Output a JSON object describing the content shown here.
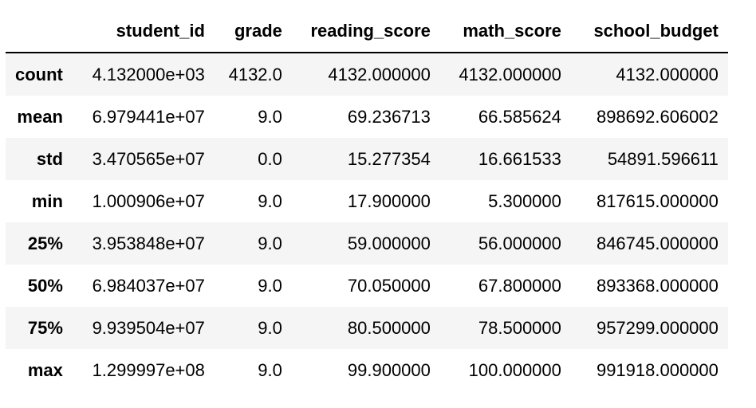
{
  "table": {
    "columns": [
      "",
      "student_id",
      "grade",
      "reading_score",
      "math_score",
      "school_budget"
    ],
    "rows": [
      {
        "label": "count",
        "cells": [
          "4.132000e+03",
          "4132.0",
          "4132.000000",
          "4132.000000",
          "4132.000000"
        ]
      },
      {
        "label": "mean",
        "cells": [
          "6.979441e+07",
          "9.0",
          "69.236713",
          "66.585624",
          "898692.606002"
        ]
      },
      {
        "label": "std",
        "cells": [
          "3.470565e+07",
          "0.0",
          "15.277354",
          "16.661533",
          "54891.596611"
        ]
      },
      {
        "label": "min",
        "cells": [
          "1.000906e+07",
          "9.0",
          "17.900000",
          "5.300000",
          "817615.000000"
        ]
      },
      {
        "label": "25%",
        "cells": [
          "3.953848e+07",
          "9.0",
          "59.000000",
          "56.000000",
          "846745.000000"
        ]
      },
      {
        "label": "50%",
        "cells": [
          "6.984037e+07",
          "9.0",
          "70.050000",
          "67.800000",
          "893368.000000"
        ]
      },
      {
        "label": "75%",
        "cells": [
          "9.939504e+07",
          "9.0",
          "80.500000",
          "78.500000",
          "957299.000000"
        ]
      },
      {
        "label": "max",
        "cells": [
          "1.299997e+08",
          "9.0",
          "99.900000",
          "100.000000",
          "991918.000000"
        ]
      }
    ]
  }
}
